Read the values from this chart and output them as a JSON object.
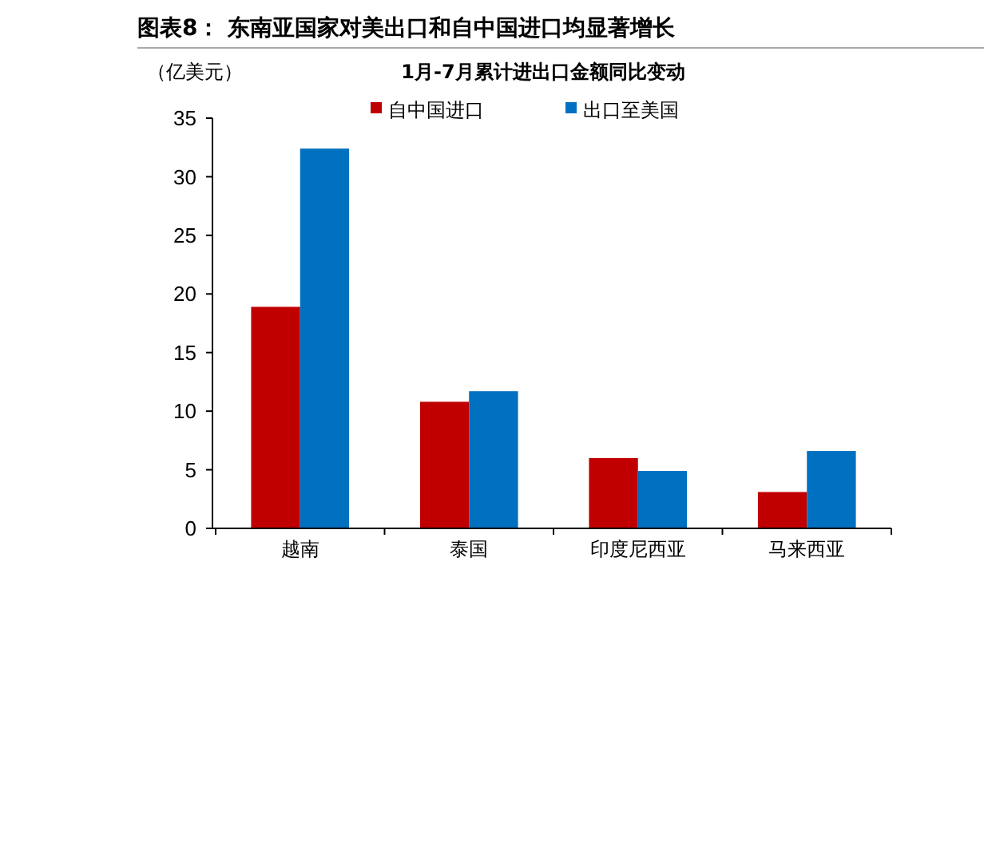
{
  "chart_data": {
    "type": "bar",
    "title": "图表8：  东南亚国家对美出口和自中国进口均显著增长",
    "subtitle": "1月-7月累计进出口金额同比变动",
    "ylabel": "（亿美元）",
    "categories": [
      "越南",
      "泰国",
      "印度尼西亚",
      "马来西亚"
    ],
    "series": [
      {
        "name": "自中国进口",
        "color": "#c00000",
        "values": [
          18.9,
          10.8,
          6.0,
          3.1
        ]
      },
      {
        "name": "出口至美国",
        "color": "#0070c0",
        "values": [
          32.4,
          11.7,
          4.9,
          6.6
        ]
      }
    ],
    "ylim": [
      0,
      35
    ],
    "yticks": [
      0,
      5,
      10,
      15,
      20,
      25,
      30,
      35
    ],
    "grid": false,
    "legend": "top"
  }
}
